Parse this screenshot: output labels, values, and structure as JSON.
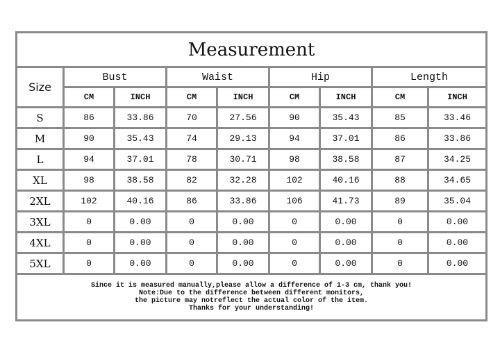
{
  "title": "Measurement",
  "size_label": "Size",
  "groups": [
    "Bust",
    "Waist",
    "Hip",
    "Length"
  ],
  "units": [
    "CM",
    "INCH"
  ],
  "rows": [
    [
      "S",
      "86",
      "33.86",
      "70",
      "27.56",
      "90",
      "35.43",
      "85",
      "33.46"
    ],
    [
      "M",
      "90",
      "35.43",
      "74",
      "29.13",
      "94",
      "37.01",
      "86",
      "33.86"
    ],
    [
      "L",
      "94",
      "37.01",
      "78",
      "30.71",
      "98",
      "38.58",
      "87",
      "34.25"
    ],
    [
      "XL",
      "98",
      "38.58",
      "82",
      "32.28",
      "102",
      "40.16",
      "88",
      "34.65"
    ],
    [
      "2XL",
      "102",
      "40.16",
      "86",
      "33.86",
      "106",
      "41.73",
      "89",
      "35.04"
    ],
    [
      "3XL",
      "0",
      "0.00",
      "0",
      "0.00",
      "0",
      "0.00",
      "0",
      "0.00"
    ],
    [
      "4XL",
      "0",
      "0.00",
      "0",
      "0.00",
      "0",
      "0.00",
      "0",
      "0.00"
    ],
    [
      "5XL",
      "0",
      "0.00",
      "0",
      "0.00",
      "0",
      "0.00",
      "0",
      "0.00"
    ]
  ],
  "notes": [
    "Since it is measured manually,please allow a difference of 1-3 cm, thank you!",
    "Note:Due to the difference between different monitors,",
    "the picture may notreflect the actual color of the item.",
    "Thanks for your understanding!"
  ]
}
